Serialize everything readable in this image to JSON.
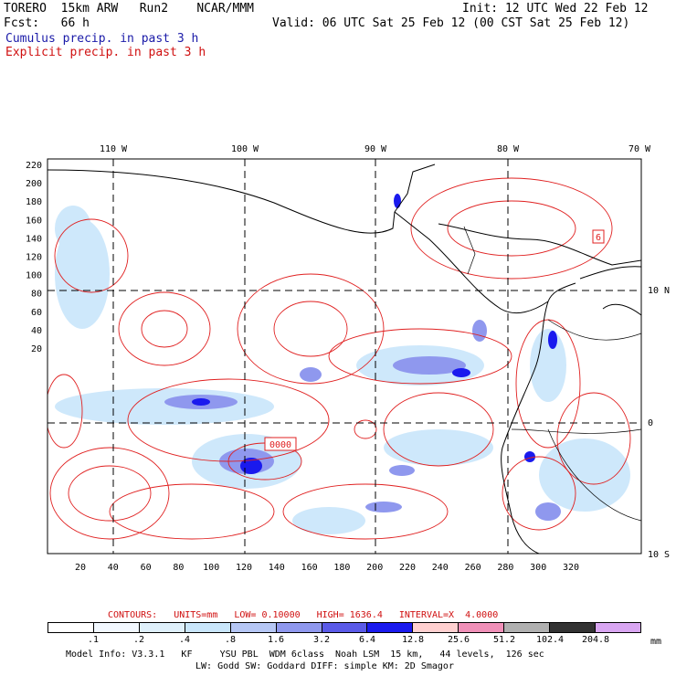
{
  "header": {
    "model": "TORERO",
    "resolution": "15km ARW",
    "run": "Run2",
    "org": "NCAR/MMM",
    "init": "Init: 12 UTC Wed 22 Feb 12",
    "fcst_label": "Fcst:",
    "fcst_value": "66 h",
    "valid": "Valid: 06 UTC Sat 25 Feb 12 (00 CST Sat 25 Feb 12)",
    "line_cumulus": "Cumulus precip. in past 3 h",
    "line_explicit": "Explicit precip. in past 3 h"
  },
  "map": {
    "top_lon_labels": [
      "110 W",
      "100 W",
      "90 W",
      "80 W",
      "70 W"
    ],
    "right_lat_labels": [
      "10 N",
      "0",
      "10 S"
    ],
    "y_ticks": [
      "220",
      "200",
      "180",
      "160",
      "140",
      "120",
      "100",
      "80",
      "60",
      "40",
      "20"
    ],
    "x_ticks": [
      "20",
      "40",
      "60",
      "80",
      "100",
      "120",
      "140",
      "160",
      "180",
      "200",
      "220",
      "240",
      "260",
      "280",
      "300",
      "320"
    ],
    "box_label_small": "6",
    "box_label_center": "0000",
    "colors": {
      "contour": "#e02020",
      "coast": "#000000",
      "light_blue": "#c9e6fb",
      "mid_blue": "#8f98ee",
      "dark_blue": "#1a1aee"
    }
  },
  "footer": {
    "contours_title": "CONTOURS:",
    "units": "UNITS=mm",
    "low": "LOW= 0.10000",
    "high": "HIGH= 1636.4",
    "interval": "INTERVAL=X  4.0000",
    "colorbar_labels": [
      ".1",
      ".2",
      ".4",
      ".8",
      "1.6",
      "3.2",
      "6.4",
      "12.8",
      "25.6",
      "51.2",
      "102.4",
      "204.8"
    ],
    "colorbar_colors": [
      "#ffffff",
      "#f2f8ff",
      "#dff0fb",
      "#c9e6fb",
      "#b6c7f5",
      "#8f98ee",
      "#5a5ae8",
      "#1a1aee",
      "#ffd0d0",
      "#f090b8",
      "#b0b0b0",
      "#333333",
      "#d9a6f2"
    ],
    "unit_mm": "mm",
    "model_info_1": "Model Info: V3.3.1   KF     YSU PBL  WDM 6class  Noah LSM  15 km,   44 levels,  126 sec",
    "model_info_2": "LW: Godd SW: Goddard DIFF: simple KM: 2D Smagor"
  }
}
